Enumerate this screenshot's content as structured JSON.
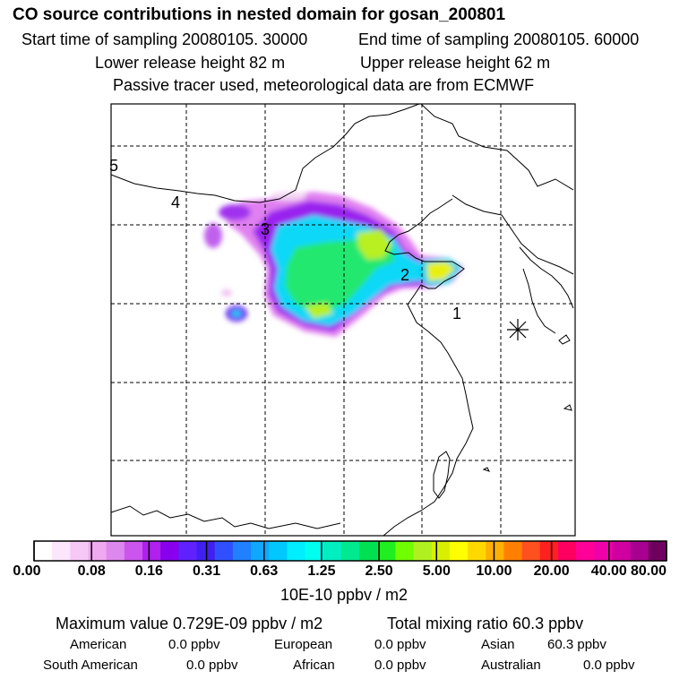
{
  "header": {
    "title": "CO  source contributions in nested domain for gosan_200801",
    "start_time": "Start time of sampling 20080105. 30000",
    "end_time": "End time of sampling 20080105. 60000",
    "lower_height": "Lower release height   82 m",
    "upper_height": "Upper release height   62 m",
    "tracer_note": "Passive tracer used, meteorological data are from ECMWF"
  },
  "map": {
    "trajectory_labels": [
      "1",
      "2",
      "3",
      "4",
      "5"
    ],
    "station_marker": "receptor-star"
  },
  "colorbar": {
    "tick_labels": [
      "0.00",
      "0.08",
      "0.16",
      "0.31",
      "0.63",
      "1.25",
      "2.50",
      "5.00",
      "10.00",
      "20.00",
      "40.00",
      "80.00"
    ],
    "unit": "10E-10 ppbv / m2",
    "colors": [
      "#ffffff",
      "#fbe6fb",
      "#f6c8f6",
      "#f0a8f0",
      "#dd88ee",
      "#cc55ee",
      "#b020ee",
      "#8800ee",
      "#6020ff",
      "#4020f0",
      "#3050ff",
      "#2080ff",
      "#10a8ff",
      "#00c8ff",
      "#00eeff",
      "#00ffee",
      "#00eec0",
      "#00e890",
      "#00e050",
      "#20ee20",
      "#70ff00",
      "#b0f020",
      "#d8f000",
      "#ffff00",
      "#ffd800",
      "#ffb000",
      "#ff8000",
      "#ff5020",
      "#ff2020",
      "#ff0060",
      "#ff0098",
      "#f000a8",
      "#d000a0",
      "#a80090",
      "#700060"
    ]
  },
  "stats": {
    "max_value": "Maximum value  0.729E-09 ppbv / m2",
    "total_mixing": "Total mixing ratio       60.3 ppbv",
    "contributions": [
      {
        "name": "American",
        "value": "0.0 ppbv"
      },
      {
        "name": "European",
        "value": "0.0 ppbv"
      },
      {
        "name": "Asian",
        "value": "60.3 ppbv"
      },
      {
        "name": "South American",
        "value": "0.0 ppbv"
      },
      {
        "name": "African",
        "value": "0.0 ppbv"
      },
      {
        "name": "Australian",
        "value": "0.0 ppbv"
      }
    ]
  }
}
